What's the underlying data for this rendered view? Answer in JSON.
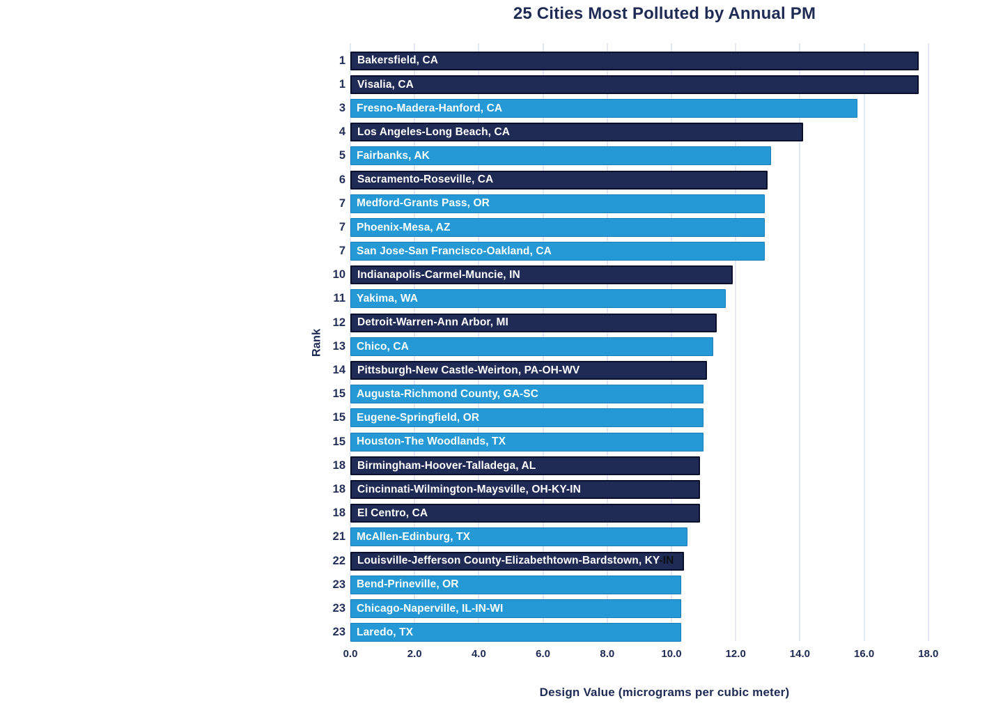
{
  "chart_data": {
    "type": "bar",
    "orientation": "horizontal",
    "title": "25 Cities Most Polluted by Annual PM",
    "xlabel": "Design Value (micrograms per cubic meter)",
    "ylabel": "Rank",
    "xlim": [
      0,
      18
    ],
    "xticks": [
      "0.0",
      "2.0",
      "4.0",
      "6.0",
      "8.0",
      "10.0",
      "12.0",
      "14.0",
      "16.0",
      "18.0"
    ],
    "grid": "vertical-only",
    "legend": false,
    "colors": {
      "navy": "#1f2a55",
      "blue": "#2499d6",
      "gridline": "#cdd5ea",
      "axis_text": "#1f2a55",
      "bar_label": "#ffffff",
      "suffix_text": "#0d1117",
      "background": "#ffffff"
    },
    "rows": [
      {
        "rank": "1",
        "city": "Bakersfield, CA",
        "value": 17.7,
        "color": "navy"
      },
      {
        "rank": "1",
        "city": "Visalia, CA",
        "value": 17.7,
        "color": "navy"
      },
      {
        "rank": "3",
        "city": "Fresno-Madera-Hanford, CA",
        "value": 15.8,
        "color": "blue"
      },
      {
        "rank": "4",
        "city": "Los Angeles-Long Beach, CA",
        "value": 14.1,
        "color": "navy"
      },
      {
        "rank": "5",
        "city": "Fairbanks, AK",
        "value": 13.1,
        "color": "blue"
      },
      {
        "rank": "6",
        "city": "Sacramento-Roseville, CA",
        "value": 13.0,
        "color": "navy"
      },
      {
        "rank": "7",
        "city": "Medford-Grants Pass, OR",
        "value": 12.9,
        "color": "blue"
      },
      {
        "rank": "7",
        "city": "Phoenix-Mesa, AZ",
        "value": 12.9,
        "color": "blue"
      },
      {
        "rank": "7",
        "city": "San Jose-San Francisco-Oakland, CA",
        "value": 12.9,
        "color": "blue"
      },
      {
        "rank": "10",
        "city": "Indianapolis-Carmel-Muncie, IN",
        "value": 11.9,
        "color": "navy"
      },
      {
        "rank": "11",
        "city": "Yakima, WA",
        "value": 11.7,
        "color": "blue"
      },
      {
        "rank": "12",
        "city": "Detroit-Warren-Ann Arbor, MI",
        "value": 11.4,
        "color": "navy"
      },
      {
        "rank": "13",
        "city": "Chico, CA",
        "value": 11.3,
        "color": "blue"
      },
      {
        "rank": "14",
        "city": "Pittsburgh-New Castle-Weirton, PA-OH-WV",
        "value": 11.1,
        "color": "navy"
      },
      {
        "rank": "15",
        "city": "Augusta-Richmond County, GA-SC",
        "value": 11.0,
        "color": "blue"
      },
      {
        "rank": "15",
        "city": "Eugene-Springfield, OR",
        "value": 11.0,
        "color": "blue"
      },
      {
        "rank": "15",
        "city": "Houston-The Woodlands, TX",
        "value": 11.0,
        "color": "blue"
      },
      {
        "rank": "18",
        "city": "Birmingham-Hoover-Talladega, AL",
        "value": 10.9,
        "color": "navy"
      },
      {
        "rank": "18",
        "city": "Cincinnati-Wilmington-Maysville, OH-KY-IN",
        "value": 10.9,
        "color": "navy"
      },
      {
        "rank": "18",
        "city": "El Centro, CA",
        "value": 10.9,
        "color": "navy"
      },
      {
        "rank": "21",
        "city": "McAllen-Edinburg, TX",
        "value": 10.5,
        "color": "blue"
      },
      {
        "rank": "22",
        "city": "Louisville-Jefferson County-Elizabethtown-Bardstown, KY",
        "suffix": "-IN",
        "value": 10.4,
        "color": "navy"
      },
      {
        "rank": "23",
        "city": "Bend-Prineville, OR",
        "value": 10.3,
        "color": "blue"
      },
      {
        "rank": "23",
        "city": "Chicago-Naperville, IL-IN-WI",
        "value": 10.3,
        "color": "blue"
      },
      {
        "rank": "23",
        "city": "Laredo, TX",
        "value": 10.3,
        "color": "blue"
      }
    ]
  }
}
